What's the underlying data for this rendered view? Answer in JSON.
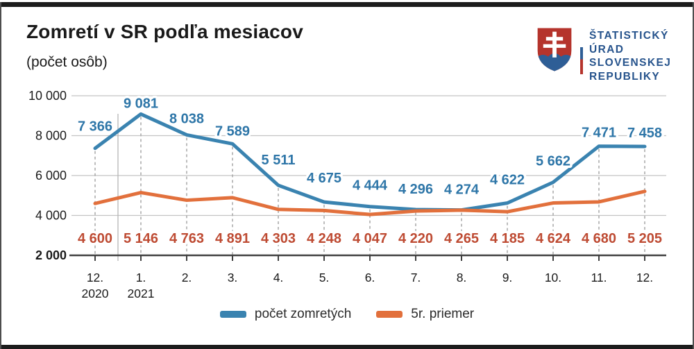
{
  "header": {
    "title": "Zomretí v SR podľa mesiacov",
    "subtitle": "(počet osôb)"
  },
  "logo": {
    "organization": "Štatistický úrad Slovenskej republiky",
    "lines": [
      "ŠTATISTICKÝ",
      "ÚRAD",
      "SLOVENSKEJ",
      "REPUBLIKY"
    ],
    "text_color": "#26538C",
    "shield_red": "#B5342C",
    "shield_blue": "#2E5E96"
  },
  "chart_data": {
    "type": "line",
    "title": "Zomretí v SR podľa mesiacov",
    "subtitle": "(počet osôb)",
    "categories": [
      "12.",
      "1.",
      "2.",
      "3.",
      "4.",
      "5.",
      "6.",
      "7.",
      "8.",
      "9.",
      "10.",
      "11.",
      "12."
    ],
    "category_sublabels": [
      "2020",
      "2021",
      "",
      "",
      "",
      "",
      "",
      "",
      "",
      "",
      "",
      "",
      ""
    ],
    "series": [
      {
        "name": "počet zomretých",
        "color": "#3A83B0",
        "label_color": "#2E76A8",
        "values": [
          7366,
          9081,
          8038,
          7589,
          5511,
          4675,
          4444,
          4296,
          4274,
          4622,
          5662,
          7471,
          7458
        ],
        "label_offsets": [
          -25,
          -9,
          -17,
          -12,
          -30,
          -28,
          -24,
          -23,
          -23,
          -27,
          -24,
          -13,
          -13
        ]
      },
      {
        "name": "5r. priemer",
        "color": "#E2703C",
        "label_color": "#BE4B33",
        "values": [
          4600,
          5146,
          4763,
          4891,
          4303,
          4248,
          4047,
          4220,
          4265,
          4185,
          4624,
          4680,
          5205
        ]
      }
    ],
    "ylim": [
      2000,
      10000
    ],
    "yticks": [
      2000,
      4000,
      6000,
      8000,
      10000
    ],
    "grid": true,
    "legend_position": "bottom",
    "value_labels": true,
    "year_separator_after_index": 0,
    "grid_color": "#C3C3C3",
    "axis_color": "#3F3F3F",
    "dash_color": "#ABABAB"
  }
}
